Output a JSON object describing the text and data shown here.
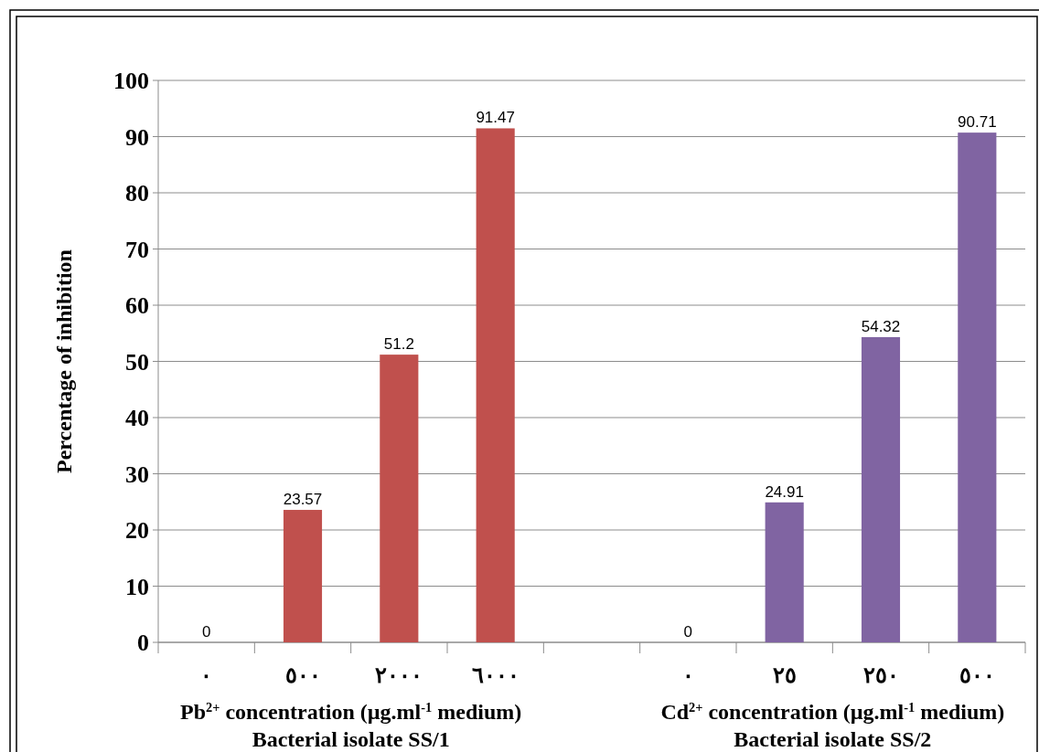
{
  "chart_data": {
    "type": "bar",
    "ylabel": "Percentage of inhibition",
    "categories": [
      "٠",
      "٥٠٠",
      "٢٠٠٠",
      "٦٠٠٠",
      null,
      "٠",
      "٢٥",
      "٢٥٠",
      "٥٠٠"
    ],
    "values": [
      0,
      23.57,
      51.2,
      91.47,
      null,
      0,
      24.91,
      54.32,
      90.71
    ],
    "colors": [
      "#c0504d",
      "#c0504d",
      "#c0504d",
      "#c0504d",
      null,
      "#8064a2",
      "#8064a2",
      "#8064a2",
      "#8064a2"
    ],
    "ylim": [
      0,
      100
    ],
    "yticks": [
      0,
      10,
      20,
      30,
      40,
      50,
      60,
      70,
      80,
      90,
      100
    ],
    "grid": "y",
    "data_labels": true,
    "annotations": [
      "Pb$^{2+}$ concentration (µg.ml$^{-1}$ medium)",
      "Bacterial isolate SS/1",
      "Cd$^{2+}$ concentration (µg.ml$^{-1}$ medium)",
      "Bacterial isolate SS/2"
    ]
  }
}
